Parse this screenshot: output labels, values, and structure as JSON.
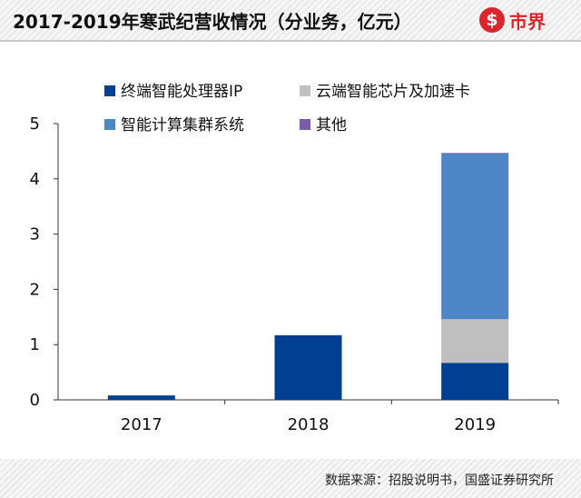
{
  "header": {
    "title": "2017-2019年寒武纪营收情况（分业务，亿元）",
    "brand_logo_glyph": "$",
    "brand_name": "市界",
    "brand_color": "#d9252b"
  },
  "footer": {
    "source": "数据来源：招股说明书，国盛证券研究所"
  },
  "chart_data": {
    "type": "bar",
    "stacked": true,
    "title": "2017-2019年寒武纪营收情况（分业务，亿元）",
    "xlabel": "",
    "ylabel": "",
    "categories": [
      "2017",
      "2018",
      "2019"
    ],
    "ylim": [
      0,
      5
    ],
    "yticks": [
      0,
      1,
      2,
      3,
      4,
      5
    ],
    "grid": false,
    "legend_position": "top",
    "series": [
      {
        "name": "终端智能处理器IP",
        "color": "#003f91",
        "values": [
          0.08,
          1.17,
          0.67
        ]
      },
      {
        "name": "云端智能芯片及加速卡",
        "color": "#bfbfbf",
        "values": [
          0,
          0,
          0.79
        ]
      },
      {
        "name": "智能计算集群系统",
        "color": "#4f86c6",
        "values": [
          0,
          0,
          3.0
        ]
      },
      {
        "name": "其他",
        "color": "#7b5aa6",
        "values": [
          0,
          0,
          0.01
        ]
      }
    ]
  }
}
